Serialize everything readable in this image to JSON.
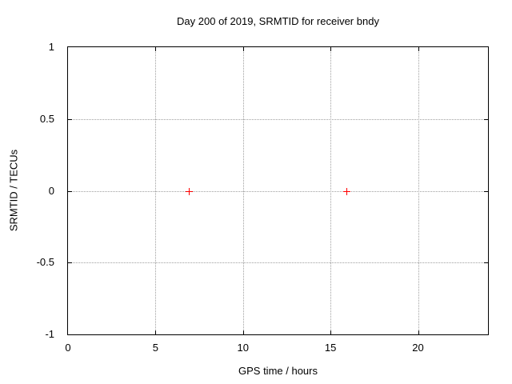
{
  "chart_data": {
    "type": "scatter",
    "title": "Day 200 of 2019, SRMTID for receiver bndy",
    "xlabel": "GPS time / hours",
    "ylabel": "SRMTID / TECUs",
    "xlim": [
      0,
      24
    ],
    "ylim": [
      -1,
      1
    ],
    "x_ticks": [
      0,
      5,
      10,
      15,
      20
    ],
    "y_ticks": [
      -1,
      -0.5,
      0,
      0.5,
      1
    ],
    "grid": true,
    "grid_style": "dotted",
    "legend_position": "none",
    "series": [
      {
        "name": "SRMTID",
        "marker": "plus",
        "color": "#ff0000",
        "points": [
          [
            6.9,
            0
          ],
          [
            15.9,
            0
          ]
        ]
      }
    ]
  },
  "colors": {
    "background": "#ffffff",
    "axis": "#000000",
    "grid": "#a0a0a0",
    "text": "#000000",
    "marker": "#ff0000"
  }
}
